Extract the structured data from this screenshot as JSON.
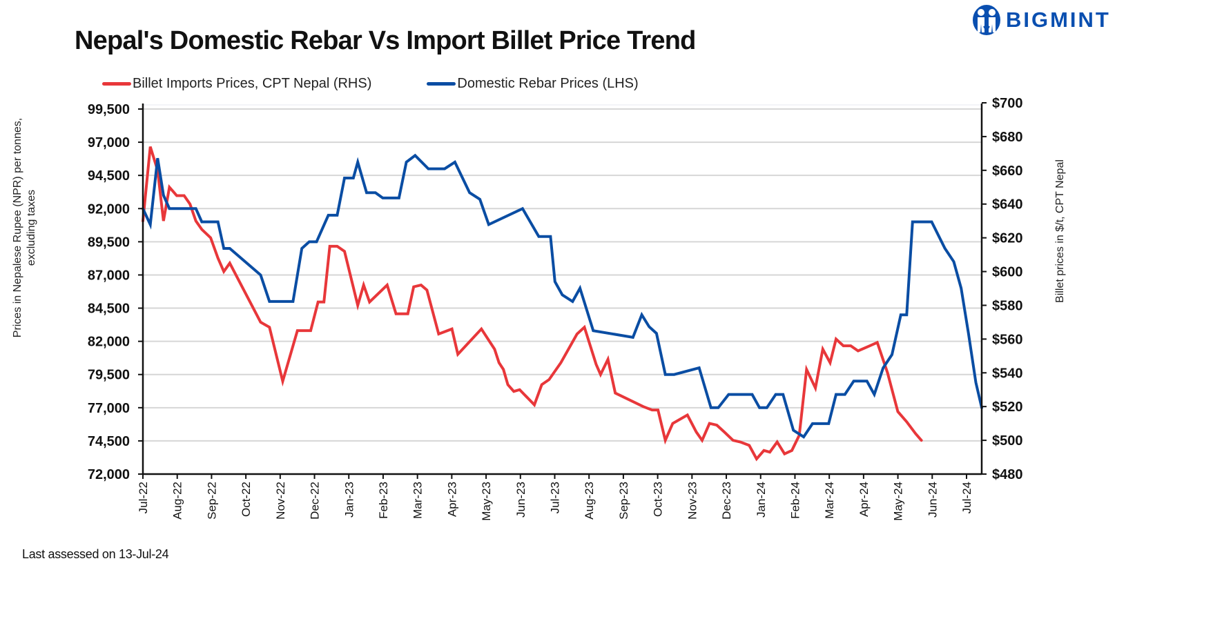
{
  "brand": {
    "name": "BIGMINT",
    "color": "#0a4fb0",
    "logo_icon": "bigmint-people-logo-icon"
  },
  "footnote": "Last assessed on 13-Jul-24",
  "chart_data": {
    "type": "line",
    "title": "Nepal's Domestic Rebar Vs Import Billet Price Trend",
    "legend_position": "top-left",
    "grid": true,
    "xlabel": "",
    "x_categories": [
      "Jul-22",
      "Aug-22",
      "Sep-22",
      "Oct-22",
      "Nov-22",
      "Dec-22",
      "Jan-23",
      "Feb-23",
      "Mar-23",
      "Apr-23",
      "May-23",
      "Jun-23",
      "Jul-23",
      "Aug-23",
      "Sep-23",
      "Oct-23",
      "Nov-23",
      "Dec-23",
      "Jan-24",
      "Feb-24",
      "Mar-24",
      "Apr-24",
      "May-24",
      "Jun-24",
      "Jul-24"
    ],
    "x_note": "x values are month offsets from Jul-22 (0 = Jul-22, 24 = Jul-24)",
    "y_left": {
      "label": "Prices in Nepalese Rupee (NPR) per tonnes, excluding taxes",
      "range": [
        72000,
        99500
      ],
      "ticks": [
        72000,
        74500,
        77000,
        79500,
        82000,
        84500,
        87000,
        89500,
        92000,
        94500,
        97000,
        99500
      ],
      "tick_labels": [
        "72,000",
        "74,500",
        "77,000",
        "79,500",
        "82,000",
        "84,500",
        "87,000",
        "89,500",
        "92,000",
        "94,500",
        "97,000",
        "99,500"
      ]
    },
    "y_right": {
      "label": "Billet prices in $/t, CPT Nepal",
      "range": [
        480,
        700
      ],
      "ticks": [
        480,
        500,
        520,
        540,
        560,
        580,
        600,
        620,
        640,
        660,
        680,
        700
      ],
      "tick_labels": [
        "$480",
        "$500",
        "$520",
        "$540",
        "$560",
        "$580",
        "$600",
        "$620",
        "$640",
        "$660",
        "$680",
        "$700"
      ]
    },
    "series": [
      {
        "name": "Billet Imports Prices, CPT Nepal (RHS)",
        "axis": "right",
        "color": "#e8373a",
        "points": [
          [
            0.0,
            630
          ],
          [
            0.25,
            674
          ],
          [
            0.5,
            660
          ],
          [
            0.7,
            630
          ],
          [
            0.9,
            650
          ],
          [
            1.15,
            645
          ],
          [
            1.4,
            645
          ],
          [
            1.6,
            640
          ],
          [
            1.8,
            630
          ],
          [
            2.0,
            625
          ],
          [
            2.3,
            620
          ],
          [
            2.55,
            608
          ],
          [
            2.75,
            600
          ],
          [
            2.95,
            605
          ],
          [
            4.0,
            570
          ],
          [
            4.3,
            567
          ],
          [
            4.75,
            535
          ],
          [
            5.25,
            565
          ],
          [
            5.7,
            565
          ],
          [
            5.95,
            582
          ],
          [
            6.15,
            582
          ],
          [
            6.35,
            615
          ],
          [
            6.6,
            615
          ],
          [
            6.85,
            612
          ],
          [
            7.3,
            580
          ],
          [
            7.5,
            592
          ],
          [
            7.7,
            582
          ],
          [
            8.3,
            592
          ],
          [
            8.6,
            575
          ],
          [
            9.0,
            575
          ],
          [
            9.2,
            591
          ],
          [
            9.45,
            592
          ],
          [
            9.65,
            589
          ],
          [
            10.05,
            563
          ],
          [
            10.5,
            566
          ],
          [
            10.7,
            551
          ],
          [
            11.5,
            566
          ],
          [
            11.95,
            554
          ],
          [
            12.1,
            546
          ],
          [
            12.25,
            542
          ],
          [
            12.4,
            533
          ],
          [
            12.6,
            529
          ],
          [
            12.8,
            530
          ],
          [
            13.3,
            521
          ],
          [
            13.55,
            533
          ],
          [
            13.8,
            536
          ],
          [
            14.2,
            546
          ],
          [
            14.75,
            563
          ],
          [
            15.0,
            567
          ],
          [
            15.4,
            545
          ],
          [
            15.55,
            539
          ],
          [
            15.8,
            548
          ],
          [
            16.05,
            528
          ],
          [
            17.0,
            520
          ],
          [
            17.3,
            518
          ],
          [
            17.5,
            518
          ],
          [
            17.75,
            500
          ],
          [
            18.0,
            510
          ],
          [
            18.5,
            515
          ],
          [
            18.8,
            505
          ],
          [
            19.0,
            500
          ],
          [
            19.25,
            510
          ],
          [
            19.5,
            509
          ],
          [
            19.75,
            505
          ],
          [
            20.05,
            500
          ],
          [
            20.3,
            499
          ],
          [
            20.6,
            497
          ],
          [
            20.85,
            489
          ],
          [
            21.1,
            494
          ],
          [
            21.3,
            493
          ],
          [
            21.55,
            499
          ],
          [
            21.8,
            492
          ],
          [
            22.05,
            494
          ],
          [
            22.3,
            503
          ],
          [
            22.55,
            542
          ],
          [
            22.85,
            531
          ],
          [
            23.1,
            554
          ],
          [
            23.35,
            546
          ],
          [
            23.55,
            560
          ],
          [
            23.8,
            556
          ],
          [
            24.05,
            556
          ],
          [
            24.3,
            553
          ],
          [
            24.7,
            556
          ],
          [
            24.95,
            558
          ],
          [
            25.3,
            540
          ],
          [
            25.65,
            517
          ],
          [
            25.95,
            511
          ],
          [
            26.25,
            504
          ],
          [
            26.45,
            500
          ]
        ]
      },
      {
        "name": "Domestic Rebar Prices (LHS)",
        "axis": "left",
        "color": "#0a4da3",
        "points": [
          [
            0.0,
            92000
          ],
          [
            0.25,
            90800
          ],
          [
            0.5,
            95800
          ],
          [
            0.7,
            93000
          ],
          [
            0.9,
            92000
          ],
          [
            1.8,
            92000
          ],
          [
            2.0,
            91000
          ],
          [
            2.55,
            91000
          ],
          [
            2.75,
            89000
          ],
          [
            2.95,
            89000
          ],
          [
            4.0,
            87000
          ],
          [
            4.3,
            85000
          ],
          [
            5.1,
            85000
          ],
          [
            5.4,
            89000
          ],
          [
            5.65,
            89500
          ],
          [
            5.9,
            89500
          ],
          [
            6.3,
            91500
          ],
          [
            6.6,
            91500
          ],
          [
            6.85,
            94300
          ],
          [
            7.15,
            94300
          ],
          [
            7.3,
            95500
          ],
          [
            7.6,
            93200
          ],
          [
            7.9,
            93200
          ],
          [
            8.15,
            92800
          ],
          [
            8.7,
            92800
          ],
          [
            8.95,
            95500
          ],
          [
            9.25,
            96000
          ],
          [
            9.7,
            95000
          ],
          [
            10.25,
            95000
          ],
          [
            10.6,
            95500
          ],
          [
            11.1,
            93200
          ],
          [
            11.45,
            92700
          ],
          [
            11.75,
            90800
          ],
          [
            12.9,
            92000
          ],
          [
            13.45,
            89900
          ],
          [
            13.85,
            89900
          ],
          [
            14.0,
            86500
          ],
          [
            14.25,
            85500
          ],
          [
            14.6,
            85000
          ],
          [
            14.85,
            86000
          ],
          [
            15.3,
            82800
          ],
          [
            16.65,
            82300
          ],
          [
            16.95,
            84000
          ],
          [
            17.2,
            83100
          ],
          [
            17.45,
            82600
          ],
          [
            17.75,
            79500
          ],
          [
            18.05,
            79500
          ],
          [
            18.9,
            80000
          ],
          [
            19.3,
            77000
          ],
          [
            19.55,
            77000
          ],
          [
            19.9,
            78000
          ],
          [
            20.7,
            78000
          ],
          [
            20.95,
            77000
          ],
          [
            21.2,
            77000
          ],
          [
            21.5,
            78000
          ],
          [
            21.75,
            78000
          ],
          [
            22.1,
            75300
          ],
          [
            22.45,
            74800
          ],
          [
            22.75,
            75800
          ],
          [
            23.3,
            75800
          ],
          [
            23.55,
            78000
          ],
          [
            23.85,
            78000
          ],
          [
            24.15,
            79000
          ],
          [
            24.6,
            79000
          ],
          [
            24.85,
            78000
          ],
          [
            25.15,
            80000
          ],
          [
            25.45,
            81000
          ],
          [
            25.75,
            84000
          ],
          [
            25.95,
            84000
          ],
          [
            26.15,
            91000
          ],
          [
            26.8,
            91000
          ],
          [
            27.25,
            89000
          ],
          [
            27.55,
            88000
          ],
          [
            27.8,
            86000
          ],
          [
            28.05,
            82600
          ],
          [
            28.3,
            78900
          ],
          [
            28.5,
            77000
          ]
        ]
      }
    ]
  }
}
